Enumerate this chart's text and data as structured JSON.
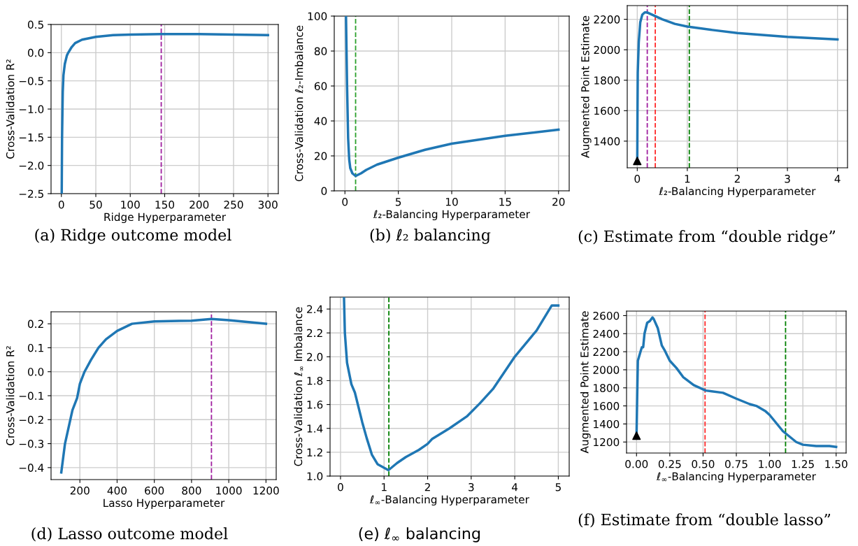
{
  "chart_data": [
    {
      "type": "line",
      "title": "(a) Ridge outcome model",
      "xlabel": "Ridge Hyperparameter",
      "ylabel": "Cross-Validation R²",
      "grid": true,
      "xlim": [
        -15,
        315
      ],
      "ylim": [
        -2.5,
        0.5
      ],
      "xticks": [
        0,
        50,
        100,
        150,
        200,
        250,
        300
      ],
      "yticks": [
        {
          "value": -2.5,
          "label": "−2.5"
        },
        {
          "value": -2.0,
          "label": "−2.0"
        },
        {
          "value": -1.5,
          "label": "−1.5"
        },
        {
          "value": -1.0,
          "label": "−1.0"
        },
        {
          "value": -0.5,
          "label": "−0.5"
        },
        {
          "value": 0,
          "label": "0.0"
        },
        0.5
      ],
      "series": [
        {
          "color": "#1f77b4",
          "x": [
            0.5,
            1,
            2,
            3,
            5,
            8,
            10,
            15,
            20,
            30,
            50,
            75,
            100,
            145,
            200,
            250,
            300
          ],
          "values": [
            -2.5,
            -1.5,
            -0.7,
            -0.4,
            -0.2,
            -0.05,
            0.0,
            0.1,
            0.17,
            0.23,
            0.28,
            0.31,
            0.32,
            0.33,
            0.33,
            0.32,
            0.31
          ]
        }
      ],
      "ref_lines": [
        {
          "axis": "x",
          "value": 145,
          "color": "#a020a0",
          "line_style": "dashed"
        }
      ]
    },
    {
      "type": "line",
      "title": "(b) ℓ₂ balancing",
      "xlabel": "ℓ₂-Balancing Hyperparameter",
      "ylabel": "Cross-Validation ℓ₂-Imbalance",
      "grid": true,
      "xlim": [
        -1,
        21
      ],
      "ylim": [
        0,
        100
      ],
      "xticks": [
        0,
        5,
        10,
        15,
        20
      ],
      "yticks": [
        0,
        20,
        40,
        60,
        80,
        100
      ],
      "series": [
        {
          "color": "#1f77b4",
          "x": [
            0.1,
            0.2,
            0.3,
            0.4,
            0.5,
            0.7,
            1.0,
            1.5,
            2,
            3,
            5,
            7.5,
            10,
            15,
            20
          ],
          "values": [
            100,
            60,
            30,
            18,
            13,
            10,
            8.5,
            10,
            12,
            15,
            19,
            23.5,
            27,
            31.5,
            35
          ]
        }
      ],
      "ref_lines": [
        {
          "axis": "x",
          "value": 1.0,
          "color": "#2ca02c",
          "line_style": "dashed"
        }
      ]
    },
    {
      "type": "line",
      "title": "(c) Estimate from “double ridge”",
      "xlabel": "ℓ₂-Balancing Hyperparameter",
      "ylabel": "Augmented Point Estimate",
      "grid": true,
      "xlim": [
        -0.2,
        4.2
      ],
      "ylim": [
        1225,
        2290
      ],
      "xticks": [
        0,
        1,
        2,
        3,
        4
      ],
      "yticks": [
        1400,
        1600,
        1800,
        2000,
        2200
      ],
      "series": [
        {
          "color": "#1f77b4",
          "x": [
            0,
            0.005,
            0.01,
            0.03,
            0.06,
            0.1,
            0.15,
            0.2,
            0.3,
            0.5,
            0.75,
            1,
            1.5,
            2,
            3,
            4
          ],
          "values": [
            1270,
            1600,
            1850,
            2050,
            2180,
            2230,
            2245,
            2245,
            2230,
            2200,
            2170,
            2152,
            2130,
            2110,
            2085,
            2068
          ]
        },
        {
          "type": "scatter",
          "marker": "triangle",
          "color": "#000000",
          "x": [
            0
          ],
          "values": [
            1270
          ]
        }
      ],
      "ref_lines": [
        {
          "axis": "x",
          "value": 0.2,
          "color": "#a020a0",
          "line_style": "dashed"
        },
        {
          "axis": "x",
          "value": 0.36,
          "color": "#ff2a2a",
          "line_style": "dashed"
        },
        {
          "axis": "x",
          "value": 1.04,
          "color": "#008000",
          "line_style": "dashed"
        }
      ]
    },
    {
      "type": "line",
      "title": "(d) Lasso outcome model",
      "xlabel": "Lasso Hyperparameter",
      "ylabel": "Cross-Validation R²",
      "grid": true,
      "xlim": [
        45,
        1255
      ],
      "ylim": [
        -0.45,
        0.25
      ],
      "xticks": [
        200,
        400,
        600,
        800,
        1000,
        1200
      ],
      "yticks": [
        {
          "value": -0.4,
          "label": "−0.4"
        },
        {
          "value": -0.3,
          "label": "−0.3"
        },
        {
          "value": -0.2,
          "label": "−0.2"
        },
        {
          "value": -0.1,
          "label": "−0.1"
        },
        {
          "value": 0,
          "label": "0.0"
        },
        0.1,
        0.2
      ],
      "series": [
        {
          "color": "#1f77b4",
          "x": [
            100,
            120,
            140,
            160,
            185,
            200,
            225,
            260,
            300,
            340,
            400,
            480,
            600,
            800,
            907,
            1000,
            1200
          ],
          "values": [
            -0.42,
            -0.3,
            -0.23,
            -0.16,
            -0.11,
            -0.05,
            0.0,
            0.05,
            0.1,
            0.135,
            0.17,
            0.2,
            0.21,
            0.213,
            0.22,
            0.215,
            0.2
          ]
        }
      ],
      "ref_lines": [
        {
          "axis": "x",
          "value": 907,
          "color": "#a020a0",
          "line_style": "dashed"
        }
      ]
    },
    {
      "type": "line",
      "title": "(e) ℓ$_{∞}$ balancing",
      "xlabel": "ℓ$_{∞}$-Balancing Hyperparameter",
      "ylabel": "Cross-Validation ℓ$_{∞}$ Imbalance",
      "grid": true,
      "xlim": [
        -0.24,
        5.25
      ],
      "ylim": [
        1.0,
        2.5
      ],
      "xticks": [
        0,
        1,
        2,
        3,
        4,
        5
      ],
      "yticks": [
        {
          "value": 1,
          "label": "1.0"
        },
        1.2,
        1.4,
        1.6,
        1.8,
        {
          "value": 2,
          "label": "2.0"
        },
        2.2,
        2.4
      ],
      "series": [
        {
          "color": "#1f77b4",
          "x": [
            0.08,
            0.1,
            0.15,
            0.25,
            0.33,
            0.5,
            0.6,
            0.72,
            0.85,
            1.1,
            1.3,
            1.5,
            1.8,
            2.0,
            2.1,
            2.5,
            2.9,
            3.2,
            3.5,
            4.0,
            4.5,
            4.85,
            5.0
          ],
          "values": [
            2.5,
            2.2,
            1.95,
            1.77,
            1.7,
            1.45,
            1.32,
            1.18,
            1.1,
            1.05,
            1.11,
            1.16,
            1.22,
            1.27,
            1.31,
            1.4,
            1.5,
            1.61,
            1.73,
            2.0,
            2.22,
            2.43,
            2.43
          ]
        }
      ],
      "ref_lines": [
        {
          "axis": "x",
          "value": 1.11,
          "color": "#008000",
          "line_style": "dashed"
        }
      ]
    },
    {
      "type": "line",
      "title": "(f) Estimate from “double lasso”",
      "xlabel": "ℓ$_{∞}$-Balancing Hyperparameter",
      "ylabel": "Augmented Point Estimate",
      "grid": true,
      "xlim": [
        -0.075,
        1.575
      ],
      "ylim": [
        1078,
        2650
      ],
      "xticks": [
        {
          "value": 0,
          "label": "0.00"
        },
        0.25,
        {
          "value": 0.5,
          "label": "0.50"
        },
        0.75,
        {
          "value": 1,
          "label": "1.00"
        },
        1.25,
        {
          "value": 1.5,
          "label": "1.50"
        }
      ],
      "yticks": [
        1200,
        1400,
        1600,
        1800,
        2000,
        2200,
        2400,
        2600
      ],
      "series": [
        {
          "color": "#1f77b4",
          "x": [
            0,
            0.005,
            0.01,
            0.02,
            0.03,
            0.04,
            0.05,
            0.06,
            0.08,
            0.1,
            0.12,
            0.13,
            0.16,
            0.19,
            0.21,
            0.25,
            0.3,
            0.35,
            0.43,
            0.52,
            0.65,
            0.75,
            0.85,
            0.9,
            0.97,
            1.0,
            1.1,
            1.2,
            1.25,
            1.35,
            1.45,
            1.5
          ],
          "values": [
            1270,
            1700,
            2100,
            2150,
            2200,
            2250,
            2250,
            2400,
            2520,
            2540,
            2580,
            2560,
            2460,
            2270,
            2220,
            2100,
            2020,
            1920,
            1830,
            1770,
            1745,
            1680,
            1620,
            1600,
            1540,
            1500,
            1320,
            1200,
            1170,
            1155,
            1155,
            1145
          ]
        },
        {
          "type": "scatter",
          "marker": "triangle",
          "color": "#000000",
          "x": [
            0
          ],
          "values": [
            1270
          ]
        }
      ],
      "ref_lines": [
        {
          "axis": "x",
          "value": 0.515,
          "color": "#ff2a2a",
          "line_style": "dashed"
        },
        {
          "axis": "x",
          "value": 1.12,
          "color": "#008000",
          "line_style": "dashed"
        }
      ]
    }
  ]
}
